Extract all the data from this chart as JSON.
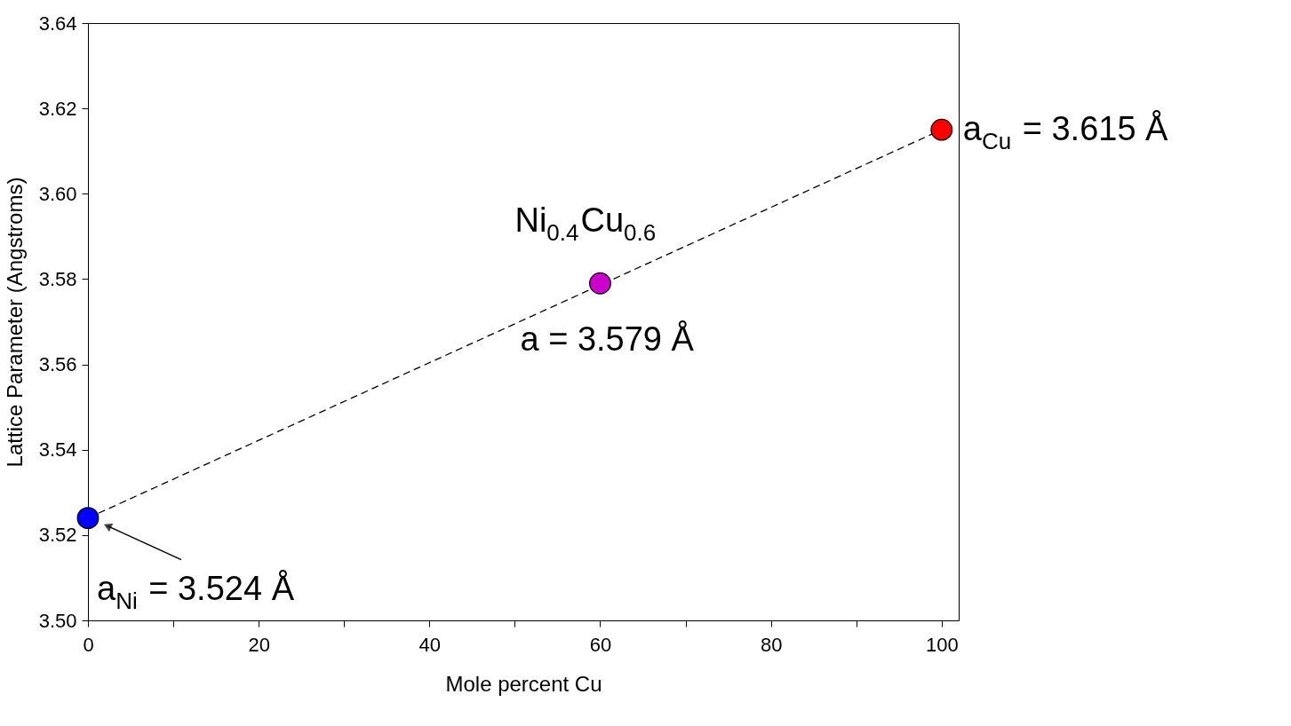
{
  "chart_data": {
    "type": "scatter",
    "xlabel": "Mole percent Cu",
    "ylabel": "Lattice Parameter (Angstroms)",
    "xlim": [
      0,
      102
    ],
    "ylim": [
      3.5,
      3.64
    ],
    "xticks": [
      0,
      {
        "value": 10,
        "label": null
      },
      20,
      {
        "value": 30,
        "label": null
      },
      40,
      {
        "value": 50,
        "label": null
      },
      60,
      {
        "value": 70,
        "label": null
      },
      80,
      {
        "value": 90,
        "label": null
      },
      100
    ],
    "yticks": [
      {
        "value": 3.5,
        "label": "3.50"
      },
      {
        "value": 3.52,
        "label": "3.52"
      },
      {
        "value": 3.54,
        "label": "3.54"
      },
      {
        "value": 3.56,
        "label": "3.56"
      },
      {
        "value": 3.58,
        "label": "3.58"
      },
      {
        "value": 3.6,
        "label": "3.60"
      },
      {
        "value": 3.62,
        "label": "3.62"
      },
      {
        "value": 3.64,
        "label": "3.64"
      }
    ],
    "grid": false,
    "legend": false,
    "series": [
      {
        "type": "line",
        "color": "#000000",
        "line_style": "dashed",
        "x": [
          0,
          100
        ],
        "values": [
          3.524,
          3.615
        ]
      },
      {
        "type": "scatter",
        "marker": "circle",
        "x": [
          0,
          60,
          100
        ],
        "values": [
          3.524,
          3.579,
          3.615
        ],
        "colors": [
          "#0000ff",
          "#cc00cc",
          "#ff0000"
        ]
      }
    ],
    "annotations": [
      {
        "text": "a$_{Cu}$ = 3.615 Å",
        "x": 100,
        "y": 3.615
      },
      {
        "text": "Ni$_{0.4}$Cu$_{0.6}$",
        "x": 60,
        "y": 3.579
      },
      {
        "text": "a = 3.579 Å",
        "x": 60,
        "y": 3.579
      },
      {
        "text": "a$_{Ni}$ = 3.524 Å",
        "x": 0,
        "y": 3.524
      }
    ]
  }
}
